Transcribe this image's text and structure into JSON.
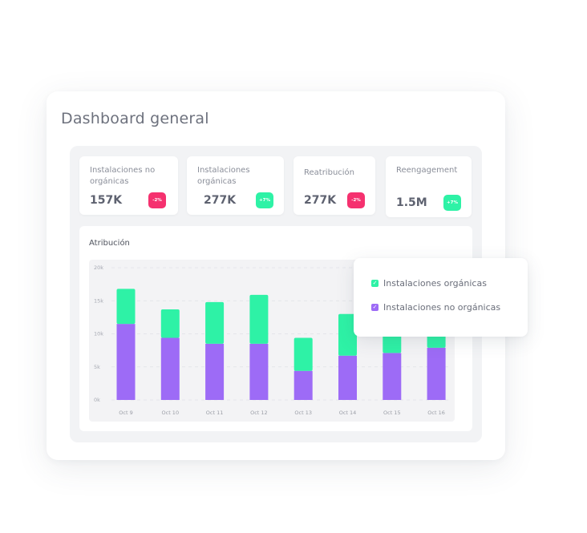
{
  "dashboard": {
    "title": "Dashboard general"
  },
  "kpis": [
    {
      "label": "Instalaciones no orgánicas",
      "value": "157K",
      "badge": "-2%",
      "trend": "negative"
    },
    {
      "label": "Instalaciones orgánicas",
      "value": "277K",
      "badge": "+7%",
      "trend": "positive"
    },
    {
      "label": "Reatribución",
      "value": "277K",
      "badge": "-2%",
      "trend": "negative"
    },
    {
      "label": "Reengagement",
      "value": "1.5M",
      "badge": "+7%",
      "trend": "positive"
    }
  ],
  "legend": {
    "items": [
      {
        "label": "Instalaciones orgánicas",
        "color": "#2ef2a6",
        "checked": true
      },
      {
        "label": "Instalaciones no orgánicas",
        "color": "#9d6bf6",
        "checked": true
      }
    ]
  },
  "chart_data": {
    "type": "bar",
    "stacked": true,
    "title": "Atribución",
    "categories": [
      "Oct 9",
      "Oct 10",
      "Oct 11",
      "Oct 12",
      "Oct 13",
      "Oct 14",
      "Oct 15",
      "Oct 16"
    ],
    "series": [
      {
        "name": "Instalaciones no orgánicas",
        "color": "#9d6bf6",
        "values": [
          11500,
          9400,
          8500,
          8500,
          4400,
          6700,
          7100,
          7900
        ]
      },
      {
        "name": "Instalaciones orgánicas",
        "color": "#2ef2a6",
        "values": [
          5300,
          4300,
          6300,
          7400,
          5000,
          6300,
          8000,
          8800
        ]
      }
    ],
    "yticks": [
      "20k",
      "15k",
      "10k",
      "5k",
      "0k"
    ],
    "ylim": [
      0,
      20000
    ],
    "grid": true,
    "legend": "top-right"
  },
  "colors": {
    "organic": "#2ef2a6",
    "non_organic": "#9d6bf6",
    "negative_badge": "#f5316f",
    "positive_badge": "#2ef2a6"
  }
}
